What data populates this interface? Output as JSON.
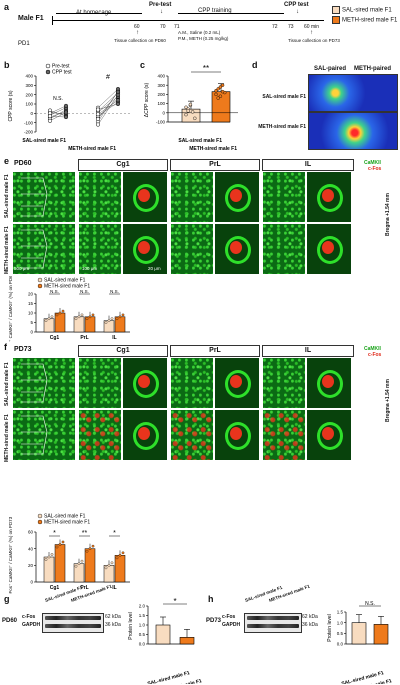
{
  "panels": {
    "a": "a",
    "b": "b",
    "c": "c",
    "d": "d",
    "e": "e",
    "f": "f",
    "g": "g",
    "h": "h"
  },
  "timeline": {
    "subject": "Male F1",
    "pd": "PD1",
    "at_homecage": "At homecage",
    "pretest": "Pre-test",
    "cpp_training": "CPP training",
    "cpp_test": "CPP test",
    "ticks": [
      "60",
      "70",
      "71",
      "72",
      "73"
    ],
    "min_label": "60 min",
    "tissue_pd60": "Tissue collection on PD60",
    "training_am": "A.M., Saline (0.2 mL)",
    "training_pm": "P.M., METH (0.25 mg/kg)",
    "tissue_pd73": "Tissue collection on PD73",
    "legend": [
      {
        "label": "SAL-sired male F1",
        "color": "#f8dcc0"
      },
      {
        "label": "METH-sired male F1",
        "color": "#ee7a1c"
      }
    ]
  },
  "panel_b": {
    "ylabel": "CPP score (s)",
    "legend": [
      "Pre-test",
      "CPP test"
    ],
    "yticks": [
      "400",
      "300",
      "200",
      "100",
      "0",
      "-100",
      "-200"
    ],
    "sig": [
      "N.S.",
      "#"
    ],
    "groups": [
      "SAL-sired male F1",
      "METH-sired male F1"
    ]
  },
  "panel_c": {
    "ylabel": "ΔCPP score (s)",
    "yticks": [
      "400",
      "300",
      "200",
      "100",
      "0",
      "-100"
    ],
    "sig": "**",
    "groups": [
      "SAL-sired male F1",
      "METH-sired male F1"
    ]
  },
  "panel_d": {
    "cols": [
      "SAL-paired",
      "METH-paired"
    ],
    "rows": [
      "SAL-sired male F1",
      "METH-sired male F1"
    ]
  },
  "panel_e": {
    "pd": "PD60",
    "regions": [
      "Cg1",
      "PrL",
      "IL"
    ],
    "rows": [
      "SAL-sired male F1",
      "METH-sired male F1"
    ],
    "stain_green": "CaMKII",
    "stain_red": "c-Fos",
    "bregma": "Bregma +1.54 mm",
    "scale_500": "500 μm",
    "scale_100": "100 μm",
    "scale_20": "20 μm",
    "ylabel": "c-Fos⁺ CaMKII⁺ / CaMKII⁺ (%) on PD60",
    "legend": [
      "SAL-sired male F1",
      "METH-sired male F1"
    ],
    "yticks": [
      "20",
      "15",
      "10",
      "5",
      "0"
    ],
    "sig": [
      "N.S.",
      "N.S.",
      "N.S."
    ]
  },
  "panel_f": {
    "pd": "PD73",
    "regions": [
      "Cg1",
      "PrL",
      "IL"
    ],
    "rows": [
      "SAL-sired male F1",
      "METH-sired male F1"
    ],
    "stain_green": "CaMKII",
    "stain_red": "c-Fos",
    "bregma": "Bregma +1.54 mm",
    "scale_500": "500 μm",
    "scale_100": "100 μm",
    "scale_20": "20 μm",
    "ylabel": "c-Fos⁺ CaMKII⁺ / CaMKII⁺ (%) on PD73",
    "legend": [
      "SAL-sired male F1",
      "METH-sired male F1"
    ],
    "yticks": [
      "60",
      "40",
      "20",
      "0"
    ],
    "sig": [
      "*",
      "**",
      "*"
    ]
  },
  "panel_g": {
    "pd": "PD60",
    "rows": [
      "c-Fos",
      "GAPDH"
    ],
    "kda": [
      "62 kDa",
      "36 kDa"
    ],
    "lanes": [
      "SAL-sired male F1",
      "METH-sired male F1"
    ],
    "ylabel": "Protein level",
    "yticks": [
      "2.0",
      "1.5",
      "1.0",
      "0.5",
      "0.0"
    ],
    "sig": "*",
    "groups": [
      "SAL-sired male F1",
      "METH-sired male F1"
    ]
  },
  "panel_h": {
    "pd": "PD73",
    "rows": [
      "c-Fos",
      "GAPDH"
    ],
    "kda": [
      "62 kDa",
      "36 kDa"
    ],
    "lanes": [
      "SAL-sired male F1",
      "METH-sired male F1"
    ],
    "ylabel": "Protein level",
    "yticks": [
      "1.5",
      "1.0",
      "0.5",
      "0.0"
    ],
    "sig": "N.S.",
    "groups": [
      "SAL-sired male F1",
      "METH-sired male F1"
    ]
  },
  "chart_data": [
    {
      "id": "b",
      "type": "scatter",
      "ylabel": "CPP score (s)",
      "ylim": [
        -200,
        400
      ],
      "categories": [
        "SAL-sired male F1",
        "METH-sired male F1"
      ],
      "series": [
        {
          "name": "Pre-test",
          "values": [
            [
              -40,
              10,
              -60,
              -20,
              30,
              -80,
              0,
              -30
            ],
            [
              -50,
              20,
              -90,
              10,
              -30,
              60,
              -120,
              -10,
              40,
              -60
            ]
          ]
        },
        {
          "name": "CPP test",
          "values": [
            [
              20,
              -10,
              40,
              60,
              -30,
              10,
              80,
              -40
            ],
            [
              160,
              220,
              240,
              180,
              120,
              260,
              200,
              140,
              100,
              230
            ]
          ]
        }
      ]
    },
    {
      "id": "c",
      "type": "bar",
      "ylabel": "ΔCPP score (s)",
      "ylim": [
        -100,
        400
      ],
      "categories": [
        "SAL-sired male F1",
        "METH-sired male F1"
      ],
      "values": [
        40,
        230
      ]
    },
    {
      "id": "e",
      "type": "bar",
      "ylabel": "c-Fos⁺ CaMKII⁺ / CaMKII⁺ (%) on PD60",
      "ylim": [
        0,
        20
      ],
      "categories": [
        "Cg1",
        "PrL",
        "IL"
      ],
      "series": [
        {
          "name": "SAL-sired male F1",
          "values": [
            7,
            8,
            6
          ]
        },
        {
          "name": "METH-sired male F1",
          "values": [
            10,
            8,
            8
          ]
        }
      ]
    },
    {
      "id": "f",
      "type": "bar",
      "ylabel": "c-Fos⁺ CaMKII⁺ / CaMKII⁺ (%) on PD73",
      "ylim": [
        0,
        60
      ],
      "categories": [
        "Cg1",
        "PrL",
        "IL"
      ],
      "series": [
        {
          "name": "SAL-sired male F1",
          "values": [
            30,
            22,
            20
          ]
        },
        {
          "name": "METH-sired male F1",
          "values": [
            45,
            40,
            32
          ]
        }
      ]
    },
    {
      "id": "g",
      "type": "bar",
      "ylabel": "Protein level",
      "ylim": [
        0,
        2.0
      ],
      "categories": [
        "SAL-sired male F1",
        "METH-sired male F1"
      ],
      "values": [
        1.0,
        0.35
      ]
    },
    {
      "id": "h",
      "type": "bar",
      "ylabel": "Protein level",
      "ylim": [
        0,
        1.5
      ],
      "categories": [
        "SAL-sired male F1",
        "METH-sired male F1"
      ],
      "values": [
        1.0,
        0.92
      ]
    }
  ]
}
